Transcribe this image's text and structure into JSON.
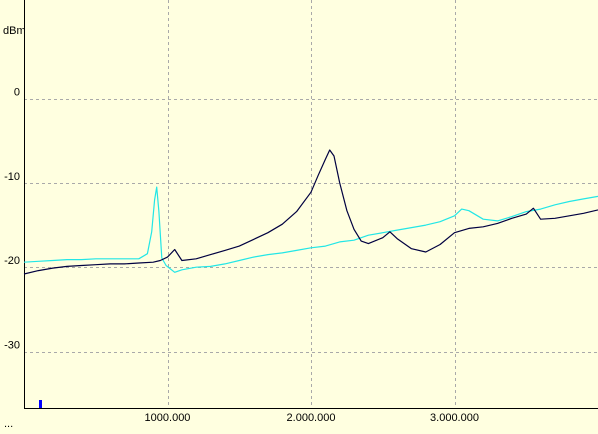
{
  "chart_data": {
    "type": "line",
    "ylabel": "dBm",
    "xlim": [
      0,
      4000000
    ],
    "ylim": [
      -36.7,
      11.7
    ],
    "y_ticks": [
      0,
      -10,
      -20,
      -30
    ],
    "x_ticks": [
      1000000,
      2000000,
      3000000
    ],
    "x_tick_labels": [
      "1000.000",
      "2.000.000",
      "3.000.000"
    ],
    "grid": true,
    "colors": {
      "background": "#ffffe0",
      "grid": "#a9a9a9",
      "series_1": "#000040",
      "series_2": "#22e6e6",
      "marker": "#0000ff"
    },
    "series": [
      {
        "color": "#000040",
        "x": [
          0,
          100000,
          200000,
          300000,
          400000,
          500000,
          600000,
          700000,
          800000,
          900000,
          950000,
          1000000,
          1050000,
          1100000,
          1200000,
          1300000,
          1400000,
          1500000,
          1600000,
          1700000,
          1800000,
          1900000,
          2000000,
          2050000,
          2100000,
          2130000,
          2160000,
          2200000,
          2250000,
          2300000,
          2350000,
          2400000,
          2500000,
          2550000,
          2600000,
          2700000,
          2800000,
          2900000,
          3000000,
          3100000,
          3200000,
          3300000,
          3400000,
          3500000,
          3550000,
          3600000,
          3700000,
          3800000,
          3900000,
          4000000
        ],
        "y": [
          -20.8,
          -20.4,
          -20.1,
          -19.9,
          -19.8,
          -19.7,
          -19.6,
          -19.6,
          -19.5,
          -19.4,
          -19.2,
          -18.8,
          -17.9,
          -19.2,
          -19.0,
          -18.5,
          -18.0,
          -17.5,
          -16.7,
          -15.9,
          -14.9,
          -13.4,
          -11.1,
          -9.1,
          -7.2,
          -6.1,
          -6.8,
          -10.0,
          -13.3,
          -15.5,
          -16.9,
          -17.2,
          -16.5,
          -15.8,
          -16.6,
          -17.8,
          -18.2,
          -17.3,
          -15.9,
          -15.4,
          -15.2,
          -14.8,
          -14.2,
          -13.7,
          -13.0,
          -14.3,
          -14.2,
          -13.9,
          -13.6,
          -13.2
        ]
      },
      {
        "color": "#22e6e6",
        "x": [
          0,
          100000,
          200000,
          300000,
          400000,
          500000,
          600000,
          700000,
          800000,
          860000,
          890000,
          910000,
          925000,
          940000,
          960000,
          990000,
          1050000,
          1100000,
          1200000,
          1300000,
          1400000,
          1500000,
          1600000,
          1700000,
          1800000,
          1900000,
          2000000,
          2100000,
          2200000,
          2300000,
          2400000,
          2500000,
          2600000,
          2700000,
          2800000,
          2900000,
          3000000,
          3050000,
          3100000,
          3200000,
          3300000,
          3400000,
          3500000,
          3600000,
          3700000,
          3800000,
          3900000,
          4000000
        ],
        "y": [
          -19.4,
          -19.3,
          -19.2,
          -19.1,
          -19.1,
          -19.0,
          -19.0,
          -19.0,
          -19.0,
          -18.4,
          -15.8,
          -12.0,
          -10.5,
          -13.4,
          -18.9,
          -19.8,
          -20.6,
          -20.3,
          -20.0,
          -19.9,
          -19.6,
          -19.2,
          -18.8,
          -18.5,
          -18.3,
          -18.0,
          -17.7,
          -17.5,
          -17.0,
          -16.8,
          -16.2,
          -15.9,
          -15.6,
          -15.3,
          -15.0,
          -14.6,
          -13.9,
          -13.1,
          -13.3,
          -14.3,
          -14.5,
          -14.0,
          -13.4,
          -13.1,
          -12.6,
          -12.2,
          -11.9,
          -11.6
        ]
      }
    ]
  }
}
